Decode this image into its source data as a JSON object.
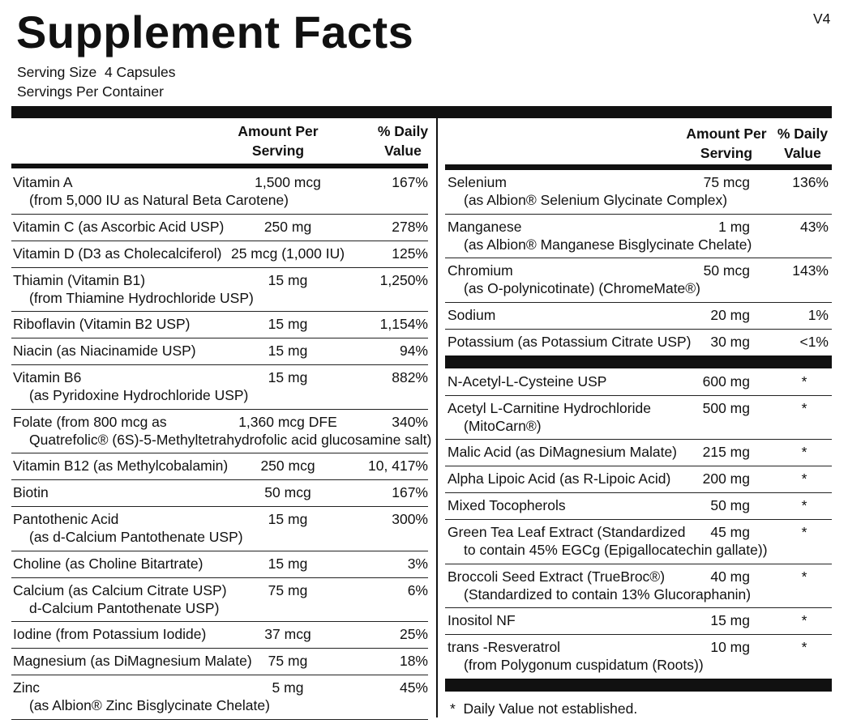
{
  "header": {
    "title": "Supplement Facts",
    "version": "V4",
    "serving_size": "Serving Size  4 Capsules",
    "servings_per_container": "Servings Per Container"
  },
  "left": {
    "amount_heading": "Amount Per Serving",
    "dv_heading": "% Daily Value",
    "rows": [
      {
        "name": "Vitamin A",
        "amount": "1,500 mcg",
        "dv": "167%",
        "sub": "(from 5,000 IU as Natural Beta Carotene)"
      },
      {
        "name": "Vitamin C (as Ascorbic Acid USP)",
        "amount": "250 mg",
        "dv": "278%"
      },
      {
        "name": "Vitamin D (D3 as Cholecalciferol)",
        "amount": "25 mcg (1,000 IU)",
        "dv": "125%"
      },
      {
        "name": "Thiamin (Vitamin B1)",
        "amount": "15 mg",
        "dv": "1,250%",
        "sub": "(from Thiamine Hydrochloride USP)"
      },
      {
        "name": "Riboflavin (Vitamin B2 USP)",
        "amount": "15 mg",
        "dv": "1,154%"
      },
      {
        "name": "Niacin (as Niacinamide USP)",
        "amount": "15 mg",
        "dv": "94%"
      },
      {
        "name": "Vitamin B6",
        "amount": "15 mg",
        "dv": "882%",
        "sub": "(as Pyridoxine Hydrochloride USP)"
      },
      {
        "name": "Folate (from 800 mcg as",
        "amount": "1,360 mcg DFE",
        "dv": "340%",
        "sub": "Quatrefolic® (6S)-5-Methyltetrahydrofolic acid glucosamine salt)"
      },
      {
        "name": "Vitamin B12 (as Methylcobalamin)",
        "amount": "250 mcg",
        "dv": "10, 417%"
      },
      {
        "name": "Biotin",
        "amount": "50 mcg",
        "dv": "167%"
      },
      {
        "name": "Pantothenic Acid",
        "amount": "15 mg",
        "dv": "300%",
        "sub": "(as d-Calcium Pantothenate USP)"
      },
      {
        "name": "Choline (as Choline Bitartrate)",
        "amount": "15 mg",
        "dv": "3%"
      },
      {
        "name": "Calcium (as Calcium Citrate USP)",
        "amount": "75 mg",
        "dv": "6%",
        "sub": "d-Calcium Pantothenate USP)"
      },
      {
        "name": "Iodine (from Potassium Iodide)",
        "amount": "37 mcg",
        "dv": "25%"
      },
      {
        "name": "Magnesium (as DiMagnesium Malate)",
        "amount": "75 mg",
        "dv": "18%"
      },
      {
        "name": "Zinc",
        "amount": "5 mg",
        "dv": "45%",
        "sub": "(as Albion® Zinc Bisglycinate Chelate)"
      }
    ]
  },
  "right": {
    "amount_heading": "Amount Per Serving",
    "dv_heading": "% Daily Value",
    "groups": [
      [
        {
          "name": "Selenium",
          "amount": "75 mcg",
          "dv": "136%",
          "sub": "(as Albion® Selenium Glycinate Complex)"
        },
        {
          "name": "Manganese",
          "amount": "1 mg",
          "dv": "43%",
          "sub": "(as Albion® Manganese Bisglycinate Chelate)"
        },
        {
          "name": "Chromium",
          "amount": "50 mcg",
          "dv": "143%",
          "sub": "(as O-polynicotinate) (ChromeMate®)"
        },
        {
          "name": "Sodium",
          "amount": "20 mg",
          "dv": "1%"
        },
        {
          "name": "Potassium (as Potassium Citrate USP)",
          "amount": "30 mg",
          "dv": "<1%"
        }
      ],
      [
        {
          "name": "N-Acetyl-L-Cysteine USP",
          "amount": "600 mg",
          "dv": "*"
        },
        {
          "name": "Acetyl L-Carnitine Hydrochloride",
          "amount": "500 mg",
          "dv": "*",
          "sub": "(MitoCarn®)"
        },
        {
          "name": "Malic Acid (as DiMagnesium Malate)",
          "amount": "215 mg",
          "dv": "*"
        },
        {
          "name": "Alpha Lipoic Acid (as R-Lipoic Acid)",
          "amount": "200 mg",
          "dv": "*"
        },
        {
          "name": "Mixed Tocopherols",
          "amount": "50 mg",
          "dv": "*"
        },
        {
          "name": "Green Tea Leaf Extract (Standardized",
          "amount": "45 mg",
          "dv": "*",
          "sub": "to contain 45% EGCg (Epigallocatechin gallate))"
        },
        {
          "name": "Broccoli Seed Extract (TrueBroc®)",
          "amount": "40 mg",
          "dv": "*",
          "sub": "(Standardized to contain 13% Glucoraphanin)"
        },
        {
          "name": "Inositol NF",
          "amount": "15 mg",
          "dv": "*"
        },
        {
          "name": "trans -Resveratrol",
          "amount": "10 mg",
          "dv": "*",
          "sub": "(from Polygonum cuspidatum (Roots))"
        }
      ]
    ]
  },
  "footnote": "*  Daily Value not established."
}
